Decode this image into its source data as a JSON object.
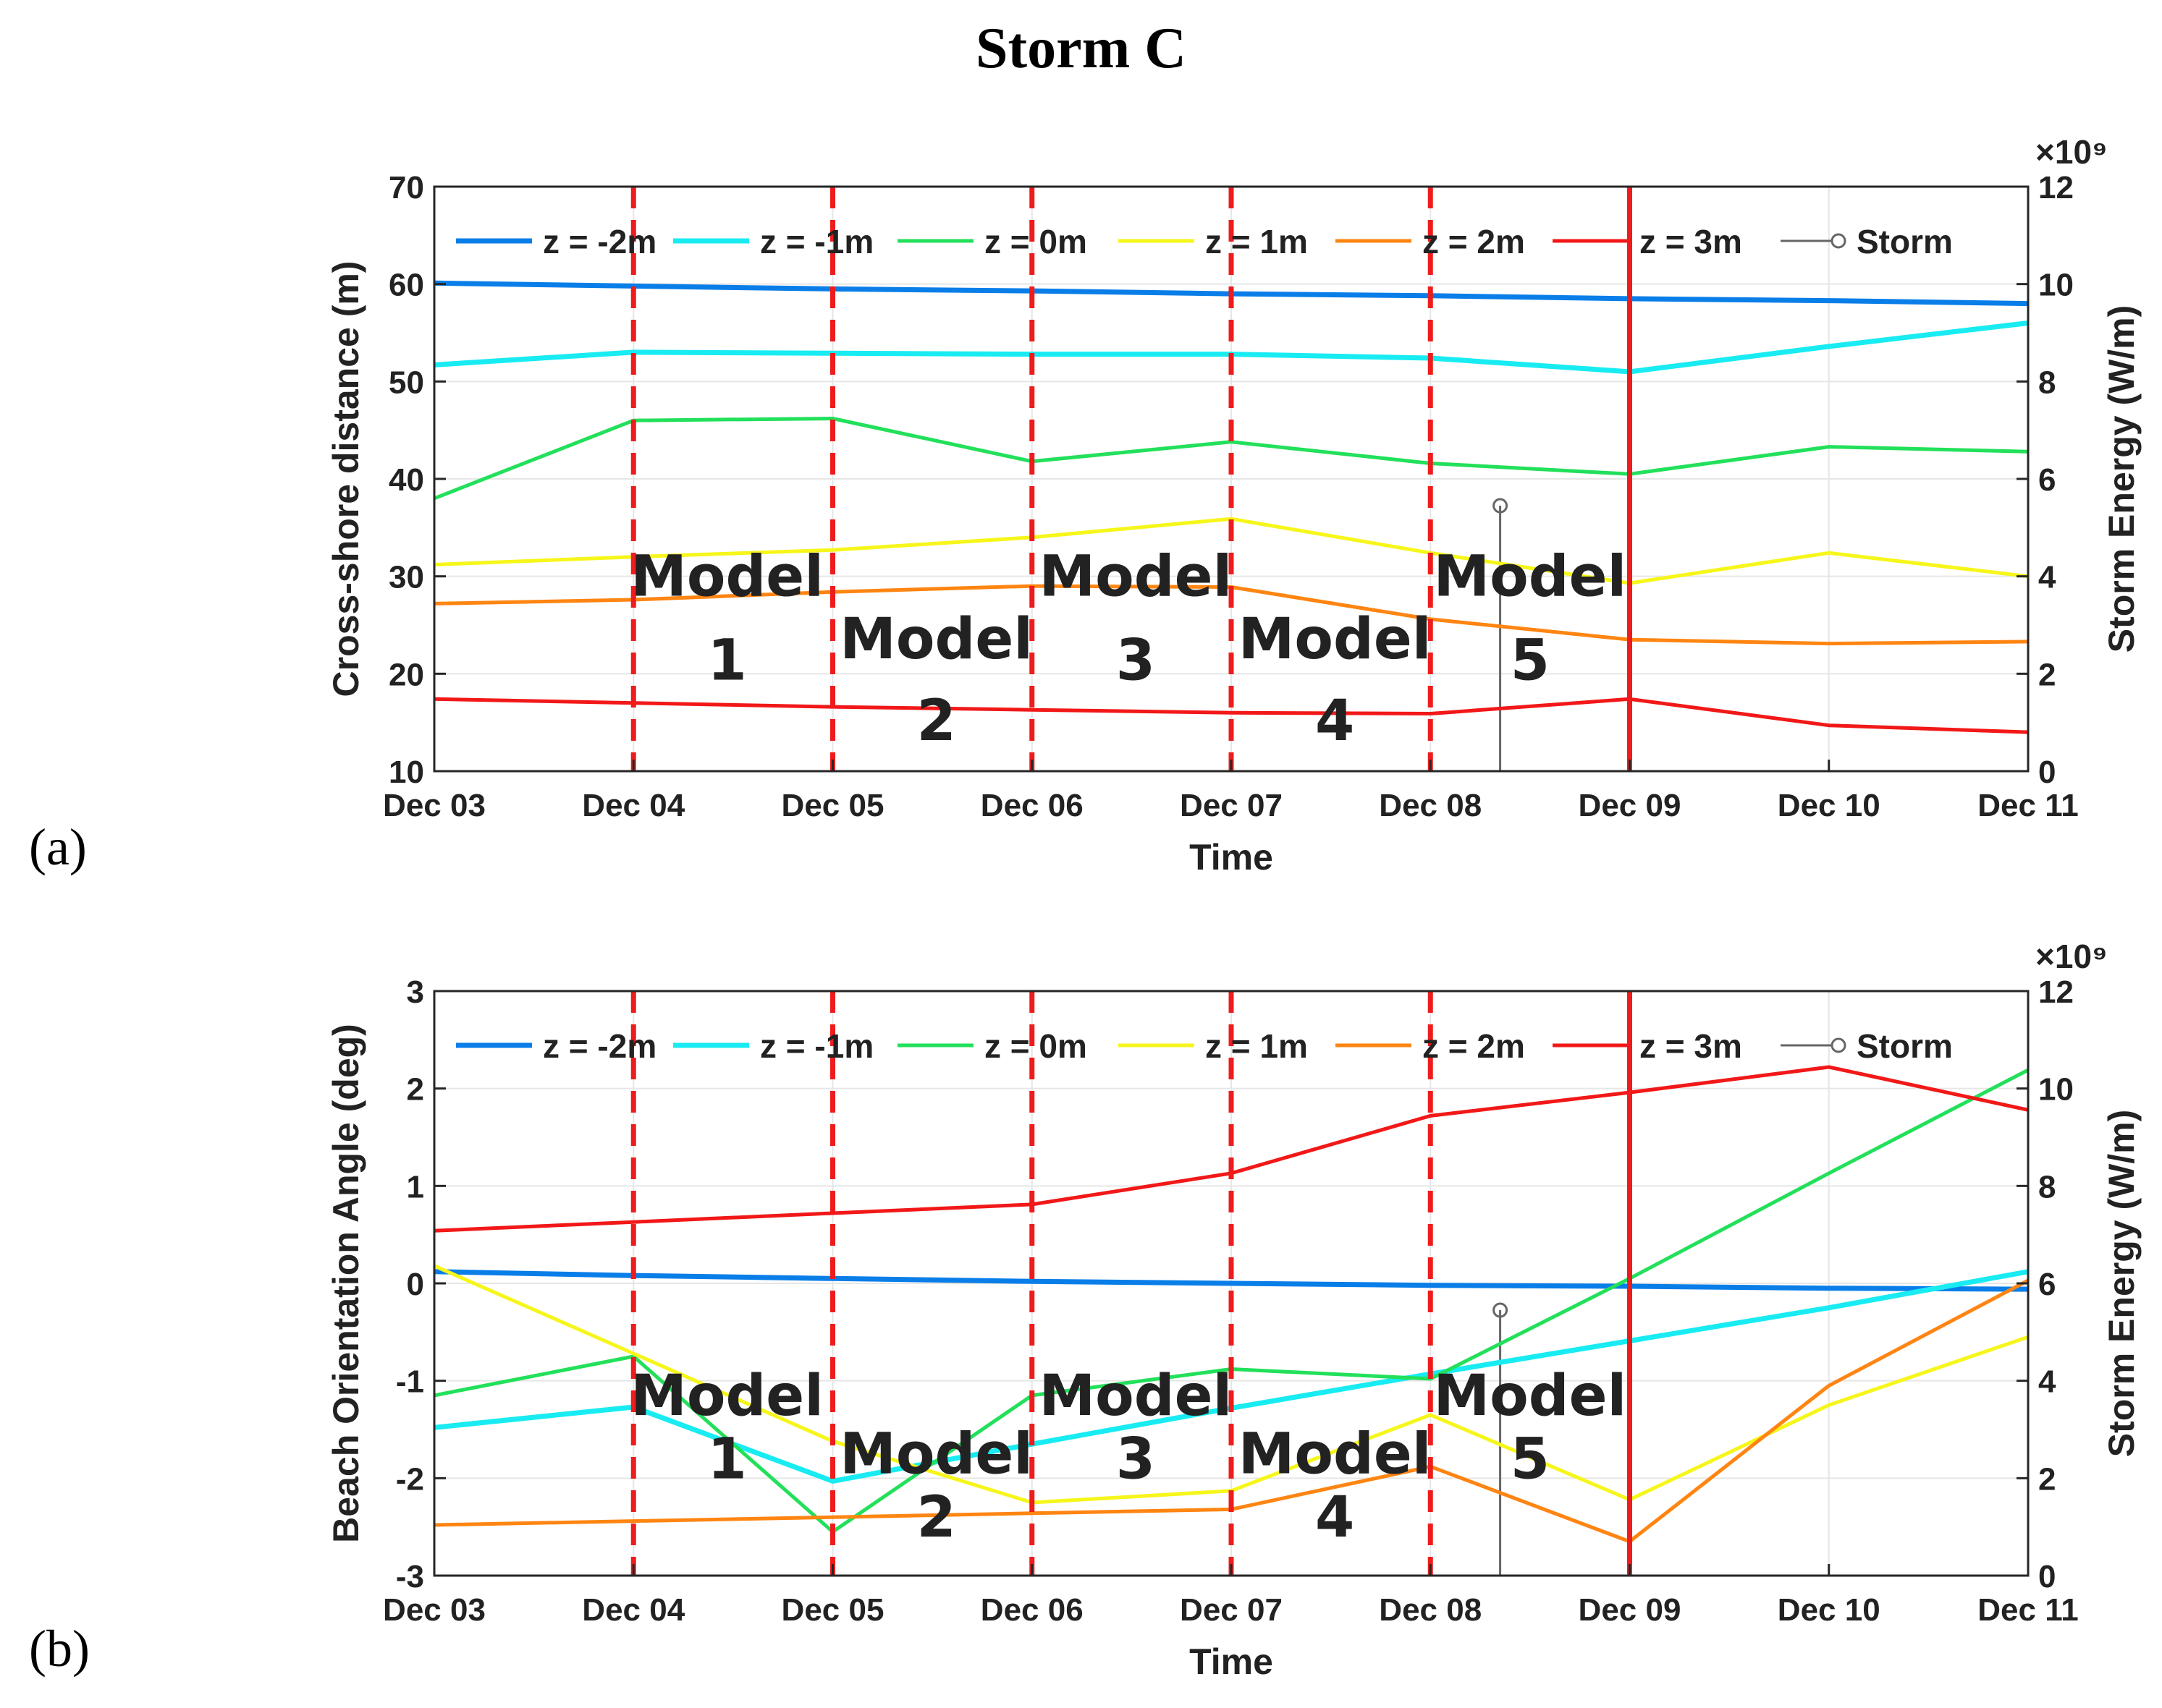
{
  "figure": {
    "title": "Storm C",
    "panel_labels": [
      "(a)",
      "(b)"
    ]
  },
  "colors": {
    "z_m2": "#0a7ee8",
    "z_m1": "#18ecf2",
    "z_0": "#22e05a",
    "z_1": "#f6f61a",
    "z_2": "#ff8512",
    "z_3": "#f21818",
    "storm": "#666666",
    "model_line": "#ee1c1c",
    "axis": "#262626",
    "grid": "#e6e6e6"
  },
  "chart_data": [
    {
      "panel": "(a)",
      "type": "line",
      "title": "",
      "xlabel": "Time",
      "ylabel": "Cross-shore distance (m)",
      "y2label": "Storm Energy (W/m)",
      "y2_multiplier": "×10⁹",
      "x_ticks": [
        "Dec 03",
        "Dec 04",
        "Dec 05",
        "Dec 06",
        "Dec 07",
        "Dec 08",
        "Dec 09",
        "Dec 10",
        "Dec 11"
      ],
      "ylim": [
        10,
        70
      ],
      "y_ticks": [
        10,
        20,
        30,
        40,
        50,
        60,
        70
      ],
      "y2lim": [
        0,
        12
      ],
      "y2_ticks": [
        0,
        2,
        4,
        6,
        8,
        10,
        12
      ],
      "series": [
        {
          "name": "z = -2m",
          "color_key": "z_m2",
          "x": [
            0,
            1,
            2,
            3,
            4,
            5,
            6,
            7,
            8
          ],
          "values": [
            60.1,
            59.8,
            59.5,
            59.3,
            59.0,
            58.8,
            58.5,
            58.3,
            58.0
          ]
        },
        {
          "name": "z = -1m",
          "color_key": "z_m1",
          "x": [
            0,
            1,
            2,
            3,
            4,
            5,
            6,
            7,
            8
          ],
          "values": [
            51.7,
            53.0,
            52.9,
            52.8,
            52.8,
            52.4,
            51.0,
            53.6,
            56.0
          ]
        },
        {
          "name": "z = 0m",
          "color_key": "z_0",
          "x": [
            0,
            1,
            2,
            3,
            4,
            5,
            6,
            7,
            8
          ],
          "values": [
            38.0,
            46.0,
            46.2,
            41.8,
            43.8,
            41.6,
            40.5,
            43.3,
            42.8
          ]
        },
        {
          "name": "z = 1m",
          "color_key": "z_1",
          "x": [
            0,
            1,
            2,
            3,
            4,
            5,
            6,
            7,
            8
          ],
          "values": [
            31.2,
            32.0,
            32.7,
            34.0,
            35.9,
            32.4,
            29.3,
            32.4,
            30.0
          ]
        },
        {
          "name": "z = 2m",
          "color_key": "z_2",
          "x": [
            0,
            1,
            2,
            3,
            4,
            5,
            6,
            7,
            8
          ],
          "values": [
            27.2,
            27.6,
            28.4,
            29.0,
            28.9,
            25.6,
            23.5,
            23.1,
            23.3
          ]
        },
        {
          "name": "z = 3m",
          "color_key": "z_3",
          "x": [
            0,
            1,
            2,
            3,
            4,
            5,
            6,
            7,
            8
          ],
          "values": [
            17.4,
            17.0,
            16.6,
            16.3,
            16.0,
            15.9,
            17.4,
            14.7,
            14.0
          ]
        }
      ],
      "storm": {
        "name": "Storm",
        "x": 5.35,
        "energy": 5.45
      },
      "model_boundaries": [
        1,
        2,
        3,
        4,
        5
      ],
      "storm_marker_x": 6,
      "models": [
        {
          "label": "Model",
          "number": "1",
          "x": 1.47,
          "y_label": 28.0,
          "y_number": 19.4
        },
        {
          "label": "Model",
          "number": "2",
          "x": 2.52,
          "y_label": 21.6,
          "y_number": 13.2
        },
        {
          "label": "Model",
          "number": "3",
          "x": 3.52,
          "y_label": 28.0,
          "y_number": 19.4
        },
        {
          "label": "Model",
          "number": "4",
          "x": 4.52,
          "y_label": 21.6,
          "y_number": 13.2
        },
        {
          "label": "Model",
          "number": "5",
          "x": 5.5,
          "y_label": 28.0,
          "y_number": 19.4
        }
      ],
      "legend": [
        "z = -2m",
        "z = -1m",
        "z = 0m",
        "z = 1m",
        "z = 2m",
        "z = 3m",
        "Storm"
      ]
    },
    {
      "panel": "(b)",
      "type": "line",
      "title": "",
      "xlabel": "Time",
      "ylabel": "Beach Orientation Angle (deg)",
      "y2label": "Storm Energy (W/m)",
      "y2_multiplier": "×10⁹",
      "x_ticks": [
        "Dec 03",
        "Dec 04",
        "Dec 05",
        "Dec 06",
        "Dec 07",
        "Dec 08",
        "Dec 09",
        "Dec 10",
        "Dec 11"
      ],
      "ylim": [
        -3,
        3
      ],
      "y_ticks": [
        -3,
        -2,
        -1,
        0,
        1,
        2,
        3
      ],
      "y2lim": [
        0,
        12
      ],
      "y2_ticks": [
        0,
        2,
        4,
        6,
        8,
        10,
        12
      ],
      "series": [
        {
          "name": "z = -2m",
          "color_key": "z_m2",
          "x": [
            0,
            1,
            2,
            3,
            4,
            5,
            6,
            7,
            8
          ],
          "values": [
            0.12,
            0.08,
            0.05,
            0.02,
            0.0,
            -0.02,
            -0.03,
            -0.05,
            -0.06
          ]
        },
        {
          "name": "z = -1m",
          "color_key": "z_m1",
          "x": [
            0,
            1,
            2,
            3,
            4,
            5,
            6,
            7,
            8
          ],
          "values": [
            -1.48,
            -1.27,
            -2.03,
            -1.65,
            -1.28,
            -0.93,
            -0.59,
            -0.25,
            0.12
          ]
        },
        {
          "name": "z = 0m",
          "color_key": "z_0",
          "x": [
            0,
            1,
            2,
            3,
            4,
            5,
            6,
            7,
            8
          ],
          "values": [
            -1.15,
            -0.75,
            -2.55,
            -1.15,
            -0.88,
            -0.98,
            0.05,
            1.13,
            2.19
          ]
        },
        {
          "name": "z = 1m",
          "color_key": "z_1",
          "x": [
            0,
            1,
            2,
            3,
            4,
            5,
            6,
            7,
            8
          ],
          "values": [
            0.18,
            -0.72,
            -1.62,
            -2.25,
            -2.13,
            -1.35,
            -2.22,
            -1.25,
            -0.55
          ]
        },
        {
          "name": "z = 2m",
          "color_key": "z_2",
          "x": [
            0,
            1,
            2,
            3,
            4,
            5,
            6,
            7,
            8
          ],
          "values": [
            -2.48,
            -2.44,
            -2.4,
            -2.36,
            -2.32,
            -1.88,
            -2.65,
            -1.05,
            0.03
          ]
        },
        {
          "name": "z = 3m",
          "color_key": "z_3",
          "x": [
            0,
            1,
            2,
            3,
            4,
            5,
            6,
            7,
            8
          ],
          "values": [
            0.54,
            0.63,
            0.72,
            0.81,
            1.13,
            1.72,
            1.96,
            2.22,
            1.78
          ]
        }
      ],
      "storm": {
        "name": "Storm",
        "x": 5.35,
        "energy": 5.45
      },
      "model_boundaries": [
        1,
        2,
        3,
        4,
        5
      ],
      "storm_marker_x": 6,
      "models": [
        {
          "label": "Model",
          "number": "1",
          "x": 1.47,
          "y_label": -1.35,
          "y_number": -2.0
        },
        {
          "label": "Model",
          "number": "2",
          "x": 2.52,
          "y_label": -1.95,
          "y_number": -2.6
        },
        {
          "label": "Model",
          "number": "3",
          "x": 3.52,
          "y_label": -1.35,
          "y_number": -2.0
        },
        {
          "label": "Model",
          "number": "4",
          "x": 4.52,
          "y_label": -1.95,
          "y_number": -2.6
        },
        {
          "label": "Model",
          "number": "5",
          "x": 5.5,
          "y_label": -1.35,
          "y_number": -2.0
        }
      ],
      "legend": [
        "z = -2m",
        "z = -1m",
        "z = 0m",
        "z = 1m",
        "z = 2m",
        "z = 3m",
        "Storm"
      ]
    }
  ]
}
